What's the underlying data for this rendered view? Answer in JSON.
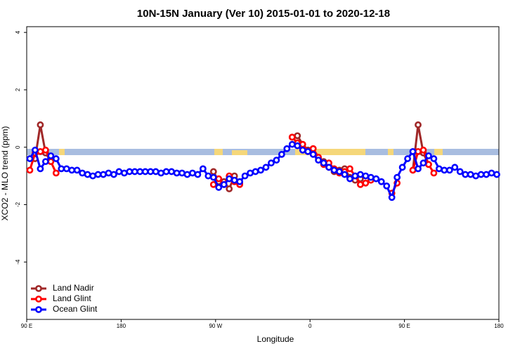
{
  "chart_data": {
    "type": "line",
    "title": "10N-15N January (Ver 10)   2015-01-01 to 2020-12-18",
    "x_label": "Longitude",
    "y_label": "XCO2 - MLO trend (ppm)",
    "xlim": [
      90,
      540
    ],
    "ylim": [
      -6,
      4.2
    ],
    "xticks": [
      {
        "value": 90,
        "label": "90 E"
      },
      {
        "value": 180,
        "label": "180"
      },
      {
        "value": 270,
        "label": "90 W"
      },
      {
        "value": 360,
        "label": "0"
      },
      {
        "value": 450,
        "label": "90 E"
      },
      {
        "value": 540,
        "label": "180"
      }
    ],
    "yticks": [
      -4,
      -2,
      0,
      2,
      4
    ],
    "legend": "bottom-left",
    "series": [
      {
        "name": "Land Nadir",
        "color": "#a02828",
        "x": [
          98,
          103,
          108,
          113,
          200,
          268,
          273,
          278,
          283,
          288,
          293,
          320,
          343,
          348,
          353,
          358,
          363,
          368,
          373,
          378,
          383,
          388,
          393,
          398,
          403,
          408,
          430,
          458,
          463,
          468,
          473
        ],
        "values": [
          -0.4,
          0.78,
          -0.2,
          -0.5,
          null,
          -0.85,
          -1.2,
          -1.2,
          -1.45,
          -1.0,
          -1.25,
          null,
          0.35,
          0.4,
          0.1,
          -0.1,
          -0.05,
          -0.4,
          -0.5,
          -0.7,
          -0.85,
          -0.8,
          -0.75,
          -1.05,
          -1.15,
          -1.1,
          null,
          -0.8,
          0.78,
          -0.2,
          -0.6
        ]
      },
      {
        "name": "Land Glint",
        "color": "#ff0000",
        "x": [
          93,
          98,
          103,
          108,
          113,
          118,
          200,
          268,
          273,
          278,
          283,
          288,
          293,
          320,
          343,
          348,
          353,
          358,
          363,
          368,
          373,
          378,
          383,
          388,
          393,
          398,
          403,
          408,
          413,
          418,
          430,
          438,
          443,
          450,
          458,
          463,
          468,
          473,
          478
        ],
        "values": [
          -0.8,
          -0.2,
          -0.15,
          -0.1,
          -0.5,
          -0.9,
          null,
          -1.3,
          -1.1,
          -1.3,
          -1.0,
          -1.2,
          -1.3,
          null,
          0.35,
          0.15,
          0.1,
          -0.15,
          -0.05,
          -0.35,
          -0.6,
          -0.55,
          -0.75,
          -0.9,
          -0.85,
          -0.75,
          -1.0,
          -1.3,
          -1.25,
          -1.15,
          null,
          -1.6,
          -1.25,
          null,
          -0.8,
          -0.15,
          -0.1,
          -0.6,
          -0.9
        ]
      },
      {
        "name": "Ocean Glint",
        "color": "#0000ff",
        "x": [
          93,
          98,
          103,
          108,
          113,
          118,
          123,
          128,
          133,
          138,
          143,
          148,
          153,
          158,
          163,
          168,
          173,
          178,
          183,
          188,
          193,
          198,
          203,
          208,
          213,
          218,
          223,
          228,
          233,
          238,
          243,
          248,
          253,
          258,
          263,
          268,
          273,
          278,
          283,
          288,
          293,
          298,
          303,
          308,
          313,
          318,
          323,
          328,
          333,
          338,
          343,
          348,
          353,
          358,
          363,
          368,
          373,
          378,
          383,
          388,
          393,
          398,
          403,
          408,
          413,
          418,
          423,
          428,
          433,
          438,
          443,
          448,
          453,
          458,
          463,
          468,
          473,
          478,
          483,
          488,
          493,
          498,
          503,
          508,
          513,
          518,
          523,
          528,
          533,
          538
        ],
        "values": [
          -0.4,
          -0.1,
          -0.75,
          -0.5,
          -0.3,
          -0.4,
          -0.75,
          -0.75,
          -0.8,
          -0.8,
          -0.9,
          -0.95,
          -1.0,
          -0.95,
          -0.95,
          -0.9,
          -0.95,
          -0.85,
          -0.9,
          -0.85,
          -0.85,
          -0.85,
          -0.85,
          -0.85,
          -0.85,
          -0.9,
          -0.85,
          -0.85,
          -0.9,
          -0.9,
          -0.95,
          -0.9,
          -0.95,
          -0.75,
          -1.0,
          -1.05,
          -1.4,
          -1.3,
          -1.1,
          -1.15,
          -1.2,
          -1.0,
          -0.9,
          -0.85,
          -0.8,
          -0.7,
          -0.55,
          -0.45,
          -0.25,
          -0.05,
          0.1,
          0.05,
          -0.1,
          -0.15,
          -0.25,
          -0.45,
          -0.55,
          -0.7,
          -0.8,
          -0.85,
          -0.95,
          -1.1,
          -1.0,
          -0.95,
          -1.0,
          -1.05,
          -1.1,
          -1.2,
          -1.35,
          -1.75,
          -1.05,
          -0.7,
          -0.4,
          -0.15,
          -0.75,
          -0.55,
          -0.3,
          -0.4,
          -0.75,
          -0.8,
          -0.8,
          -0.7,
          -0.85,
          -0.95,
          -0.95,
          -1.0,
          -0.95,
          -0.95,
          -0.9,
          -0.95
        ]
      }
    ]
  }
}
